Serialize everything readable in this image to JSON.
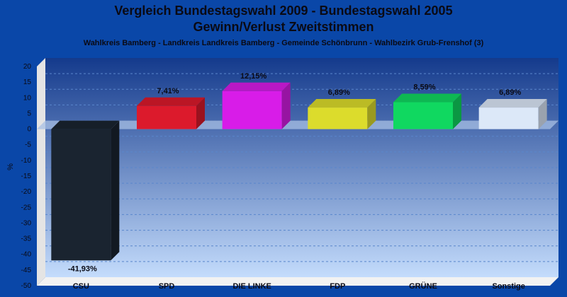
{
  "chart_data": {
    "type": "bar",
    "title": "Vergleich Bundestagswahl 2009 - Bundestagswahl 2005",
    "subtitle": "Gewinn/Verlust Zweitstimmen",
    "subsubtitle": "Wahlkreis Bamberg - Landkreis Landkreis Bamberg - Gemeinde Schönbrunn - Wahlbezirk Grub-Frenshof (3)",
    "ylabel": "%",
    "ylim": [
      -50,
      20
    ],
    "ytick_step": 5,
    "grid": true,
    "categories": [
      "CSU",
      "SPD",
      "DIE LINKE",
      "FDP",
      "GRÜNE",
      "Sonstige"
    ],
    "values": [
      -41.93,
      7.41,
      12.15,
      6.89,
      8.59,
      6.89
    ],
    "value_labels": [
      "-41,93%",
      "7,41%",
      "12,15%",
      "6,89%",
      "8,59%",
      "6,89%"
    ],
    "colors": [
      "#1a2430",
      "#dc1a2c",
      "#d81ce8",
      "#dcdc2c",
      "#10d860",
      "#dce8f8"
    ]
  }
}
